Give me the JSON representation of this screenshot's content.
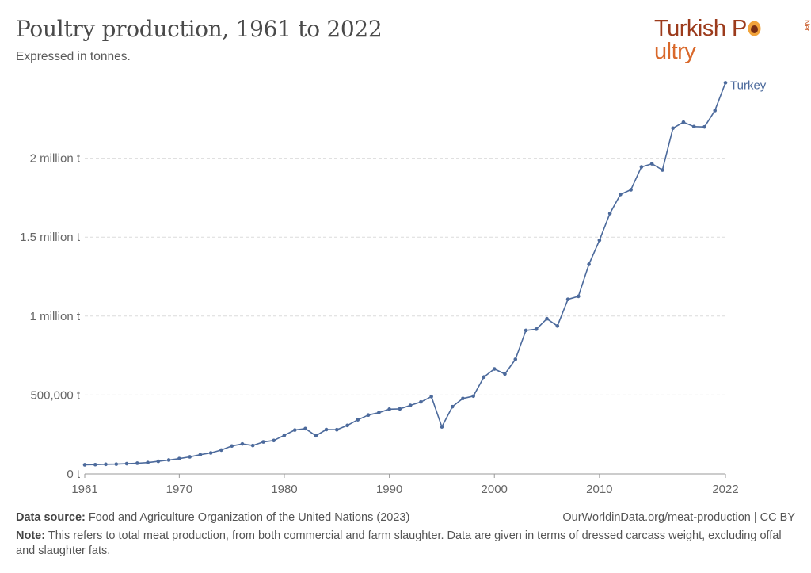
{
  "header": {
    "title": "Poultry production, 1961 to 2022",
    "subtitle": "Expressed in tonnes."
  },
  "logo": {
    "part1": "Turkish P",
    "part2": "ultry",
    "suffix": "Net",
    "color_dark": "#9c3b1c",
    "color_accent": "#d9682a"
  },
  "footer": {
    "source_label": "Data source:",
    "source_text": "Food and Agriculture Organization of the United Nations (2023)",
    "url_text": "OurWorldinData.org/meat-production | CC BY",
    "note_label": "Note:",
    "note_text": "This refers to total meat production, from both commercial and farm slaughter. Data are given in terms of dressed carcass weight, excluding offal and slaughter fats."
  },
  "chart_data": {
    "type": "line",
    "title": "Poultry production, 1961 to 2022",
    "subtitle": "Expressed in tonnes.",
    "xlim": [
      1961,
      2022
    ],
    "ylim": [
      0,
      2500000
    ],
    "x_ticks": [
      1961,
      1970,
      1980,
      1990,
      2000,
      2010,
      2022
    ],
    "x_tick_labels": [
      "1961",
      "1970",
      "1980",
      "1990",
      "2000",
      "2010",
      "2022"
    ],
    "y_ticks": [
      0,
      500000,
      1000000,
      1500000,
      2000000
    ],
    "y_tick_labels": [
      "0 t",
      "500,000 t",
      "1 million t",
      "1.5 million t",
      "2 million t"
    ],
    "grid": "horizontal dashed",
    "series": [
      {
        "name": "Turkey",
        "color": "#4c6a9c",
        "x": [
          1961,
          1962,
          1963,
          1964,
          1965,
          1966,
          1967,
          1968,
          1969,
          1970,
          1971,
          1972,
          1973,
          1974,
          1975,
          1976,
          1977,
          1978,
          1979,
          1980,
          1981,
          1982,
          1983,
          1984,
          1985,
          1986,
          1987,
          1988,
          1989,
          1990,
          1991,
          1992,
          1993,
          1994,
          1995,
          1996,
          1997,
          1998,
          1999,
          2000,
          2001,
          2002,
          2003,
          2004,
          2005,
          2006,
          2007,
          2008,
          2009,
          2010,
          2011,
          2012,
          2013,
          2014,
          2015,
          2016,
          2017,
          2018,
          2019,
          2020,
          2021,
          2022
        ],
        "values": [
          58000,
          59000,
          61000,
          62000,
          65000,
          68000,
          72000,
          80000,
          88000,
          97000,
          108000,
          122000,
          133000,
          151000,
          177000,
          190000,
          180000,
          203000,
          212000,
          245000,
          278000,
          287000,
          242000,
          281000,
          280000,
          307000,
          343000,
          373000,
          388000,
          410000,
          412000,
          434000,
          456000,
          490000,
          298000,
          426000,
          478000,
          493000,
          614000,
          665000,
          633000,
          726000,
          909000,
          917000,
          983000,
          937000,
          1106000,
          1125000,
          1328000,
          1480000,
          1650000,
          1770000,
          1800000,
          1945000,
          1965000,
          1925000,
          2190000,
          2228000,
          2200000,
          2198000,
          2302000,
          2478000
        ]
      }
    ]
  }
}
